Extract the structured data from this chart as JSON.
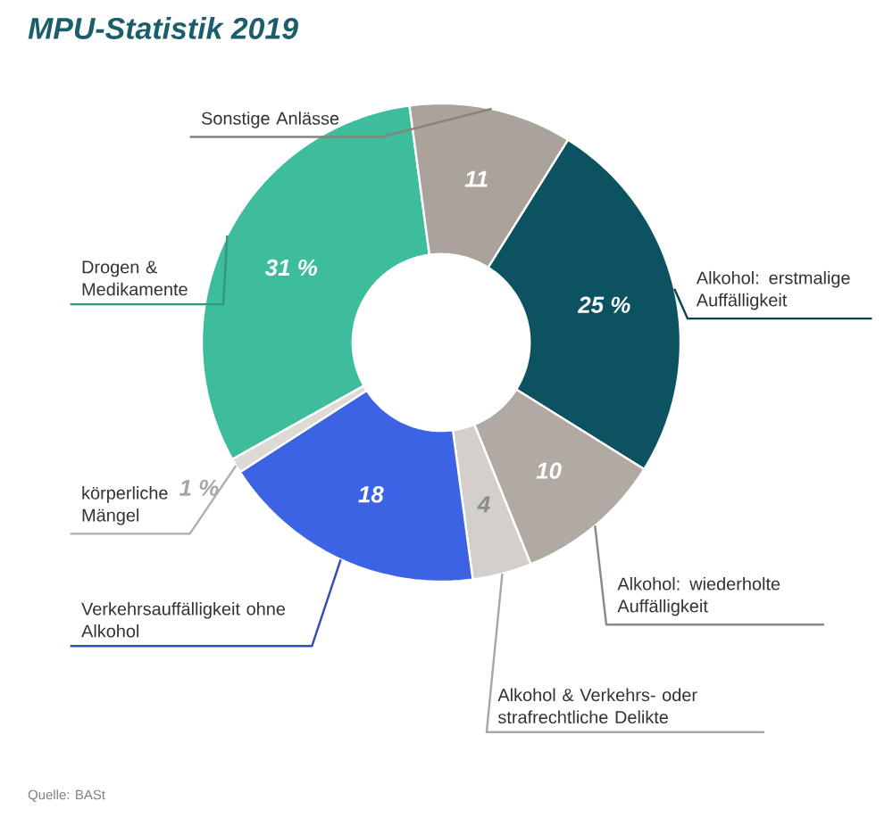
{
  "chart_data": {
    "type": "donut",
    "title": "MPU-Statistik 2019",
    "categories": [
      "Alkohol: erstmalige Auffälligkeit",
      "Alkohol: wiederholte Auffälligkeit",
      "Alkohol & Verkehrs- oder strafrechtliche Delikte",
      "Verkehrsauffälligkeit ohne Alkohol",
      "körperliche Mängel",
      "Drogen & Medikamente",
      "Sonstige Anlässe"
    ],
    "values": [
      25,
      10,
      4,
      18,
      1,
      31,
      11
    ],
    "value_labels": [
      "25 %",
      "10",
      "4",
      "18",
      "1 %",
      "31 %",
      "11"
    ],
    "colors": [
      "#0c5261",
      "#b1aaa3",
      "#d3cfca",
      "#3b63e3",
      "#dddad6",
      "#3dbd9c",
      "#aaa39b"
    ],
    "annotations": [
      "Quelle: BASt"
    ]
  }
}
